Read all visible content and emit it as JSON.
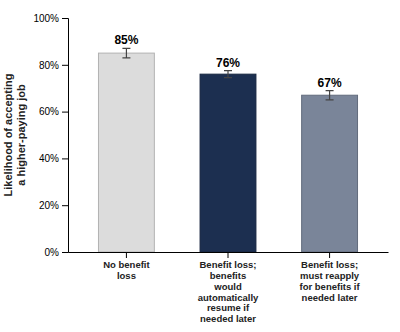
{
  "chart_data": {
    "type": "bar",
    "categories": [
      "No benefit\nloss",
      "Benefit loss;\nbenefits\nwould\nautomatically\nresume if\nneeded later",
      "Benefit loss;\nmust reapply\nfor benefits if\nneeded later"
    ],
    "values": [
      0.85,
      0.76,
      0.67
    ],
    "errors": [
      0.02,
      0.015,
      0.02
    ],
    "colors": [
      "#dcdcdc",
      "#1c2f50",
      "#7a8599"
    ],
    "data_labels": true,
    "value_labels": [
      "85%",
      "76%",
      "67%"
    ],
    "y_label": "Likelihood of accepting\na higher-paying job",
    "ylim": [
      0,
      1.0
    ],
    "yticks": [
      {
        "value": 0,
        "label": "0%"
      },
      {
        "value": 0.2,
        "label": "20%"
      },
      {
        "value": 0.4,
        "label": "40%"
      },
      {
        "value": 0.6,
        "label": "60%"
      },
      {
        "value": 0.8,
        "label": "80%"
      },
      {
        "value": 1.0,
        "label": "100%"
      }
    ]
  }
}
